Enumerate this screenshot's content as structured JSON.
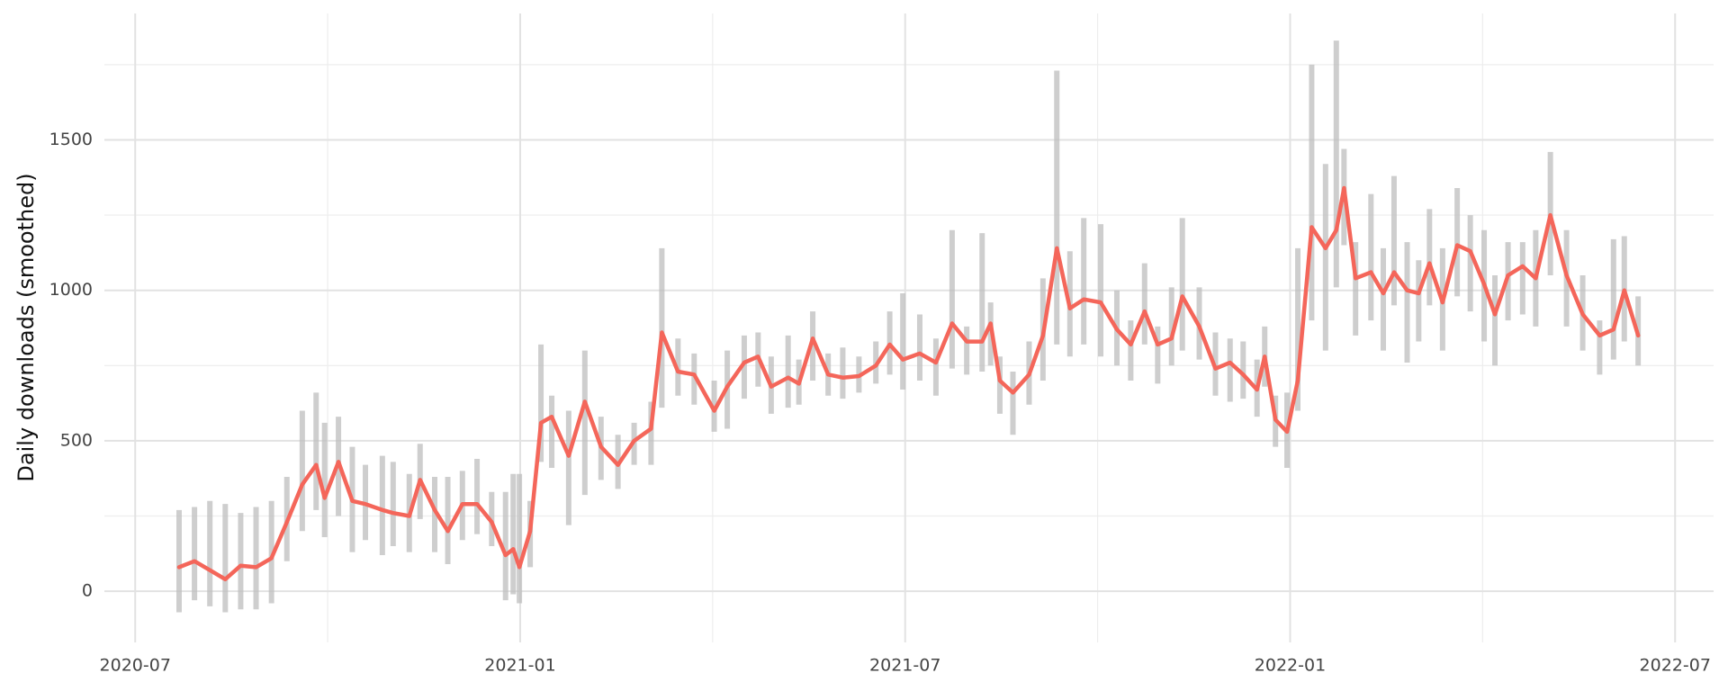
{
  "chart_data": {
    "type": "line",
    "y_label": "Daily downloads (smoothed)",
    "grid": true,
    "xlim": [
      2020.46,
      2022.55
    ],
    "xticks": [
      {
        "value": 2020.5,
        "label": "2020-07"
      },
      {
        "value": 2021.0,
        "label": "2021-01"
      },
      {
        "value": 2021.5,
        "label": "2021-07"
      },
      {
        "value": 2022.0,
        "label": "2022-01"
      },
      {
        "value": 2022.5,
        "label": "2022-07"
      }
    ],
    "minor_xticks": [
      2020.75,
      2021.25,
      2021.75,
      2022.25
    ],
    "ylim": [
      -170,
      1920
    ],
    "yticks": [
      0,
      500,
      1000,
      1500
    ],
    "minor_yticks": [
      250,
      750,
      1250,
      1750
    ],
    "x": [
      2020.557,
      2020.577,
      2020.597,
      2020.617,
      2020.637,
      2020.657,
      2020.677,
      2020.697,
      2020.717,
      2020.735,
      2020.746,
      2020.764,
      2020.782,
      2020.799,
      2020.821,
      2020.835,
      2020.856,
      2020.87,
      2020.889,
      2020.906,
      2020.925,
      2020.944,
      2020.963,
      2020.981,
      2020.991,
      2020.999,
      2021.013,
      2021.027,
      2021.041,
      2021.063,
      2021.084,
      2021.105,
      2021.127,
      2021.148,
      2021.17,
      2021.184,
      2021.205,
      2021.226,
      2021.252,
      2021.269,
      2021.291,
      2021.309,
      2021.326,
      2021.348,
      2021.362,
      2021.38,
      2021.4,
      2021.419,
      2021.44,
      2021.462,
      2021.48,
      2021.497,
      2021.519,
      2021.54,
      2021.561,
      2021.58,
      2021.6,
      2021.611,
      2021.623,
      2021.64,
      2021.661,
      2021.679,
      2021.697,
      2021.714,
      2021.732,
      2021.754,
      2021.775,
      2021.793,
      2021.811,
      2021.828,
      2021.846,
      2021.86,
      2021.882,
      2021.903,
      2021.922,
      2021.939,
      2021.957,
      2021.967,
      2021.981,
      2021.996,
      2022.01,
      2022.028,
      2022.046,
      2022.06,
      2022.07,
      2022.085,
      2022.105,
      2022.121,
      2022.135,
      2022.152,
      2022.167,
      2022.181,
      2022.198,
      2022.217,
      2022.234,
      2022.252,
      2022.266,
      2022.283,
      2022.302,
      2022.319,
      2022.338,
      2022.359,
      2022.38,
      2022.402,
      2022.42,
      2022.434,
      2022.452
    ],
    "series": [
      {
        "color": "#f4665a",
        "values": [
          80,
          100,
          70,
          40,
          85,
          80,
          110,
          230,
          355,
          420,
          310,
          430,
          300,
          290,
          270,
          260,
          250,
          370,
          270,
          200,
          290,
          290,
          230,
          120,
          140,
          80,
          200,
          560,
          580,
          450,
          630,
          480,
          420,
          500,
          540,
          860,
          730,
          720,
          600,
          680,
          760,
          780,
          680,
          710,
          690,
          840,
          720,
          710,
          715,
          750,
          820,
          770,
          790,
          760,
          890,
          830,
          830,
          890,
          700,
          660,
          720,
          850,
          1140,
          940,
          970,
          960,
          870,
          820,
          930,
          820,
          840,
          980,
          880,
          740,
          760,
          720,
          670,
          780,
          570,
          530,
          700,
          1210,
          1140,
          1200,
          1340,
          1040,
          1060,
          990,
          1060,
          1000,
          990,
          1090,
          960,
          1150,
          1130,
          1020,
          920,
          1050,
          1080,
          1040,
          1250,
          1050,
          920,
          850,
          870,
          1000,
          850
        ]
      }
    ],
    "ranges": {
      "color": "#bdbdbd",
      "low": [
        -70,
        -30,
        -50,
        -70,
        -60,
        -60,
        -40,
        100,
        200,
        270,
        180,
        250,
        130,
        170,
        120,
        150,
        130,
        240,
        130,
        90,
        170,
        190,
        150,
        -30,
        -10,
        -40,
        80,
        430,
        410,
        220,
        320,
        370,
        340,
        420,
        420,
        610,
        650,
        620,
        530,
        540,
        640,
        680,
        590,
        610,
        620,
        700,
        650,
        640,
        660,
        690,
        720,
        670,
        700,
        650,
        740,
        720,
        730,
        750,
        590,
        520,
        620,
        700,
        820,
        780,
        820,
        780,
        750,
        700,
        820,
        690,
        750,
        800,
        770,
        650,
        630,
        640,
        580,
        680,
        480,
        410,
        600,
        900,
        800,
        1010,
        1150,
        850,
        900,
        800,
        950,
        760,
        830,
        950,
        800,
        980,
        930,
        830,
        750,
        900,
        920,
        880,
        1050,
        880,
        800,
        720,
        770,
        830,
        750
      ],
      "high": [
        270,
        280,
        300,
        290,
        260,
        280,
        300,
        380,
        600,
        660,
        560,
        580,
        480,
        420,
        450,
        430,
        390,
        490,
        380,
        380,
        400,
        440,
        330,
        330,
        390,
        390,
        300,
        820,
        650,
        600,
        800,
        580,
        520,
        560,
        630,
        1140,
        840,
        790,
        700,
        800,
        850,
        860,
        780,
        850,
        770,
        930,
        790,
        810,
        780,
        830,
        930,
        990,
        920,
        840,
        1200,
        880,
        1190,
        960,
        780,
        730,
        830,
        1040,
        1730,
        1130,
        1240,
        1220,
        1000,
        900,
        1090,
        880,
        1010,
        1240,
        1010,
        860,
        840,
        830,
        770,
        880,
        650,
        660,
        1140,
        1750,
        1420,
        1830,
        1470,
        1160,
        1320,
        1140,
        1380,
        1160,
        1100,
        1270,
        1140,
        1340,
        1250,
        1200,
        1050,
        1160,
        1160,
        1200,
        1460,
        1200,
        1050,
        900,
        1170,
        1180,
        980
      ]
    }
  }
}
